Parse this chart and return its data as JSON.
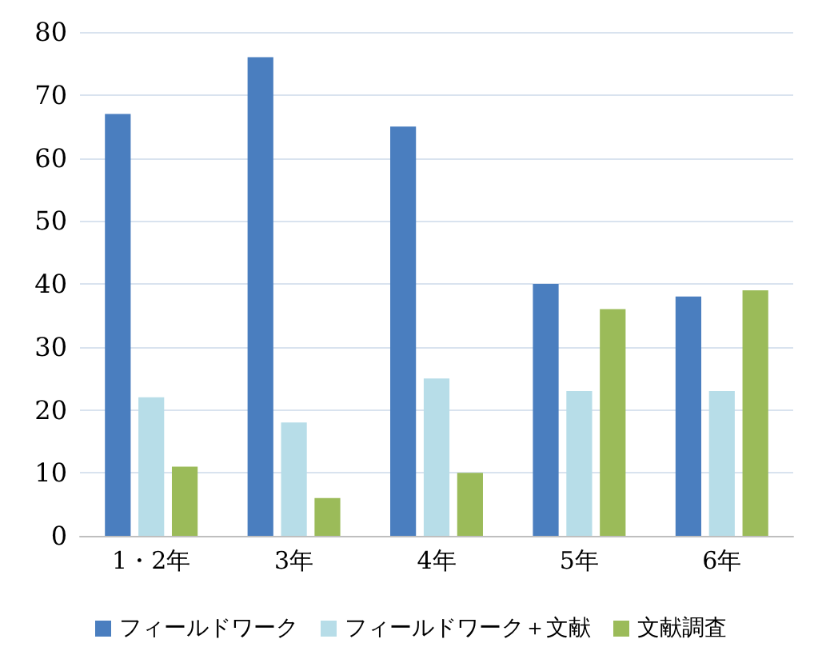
{
  "chart_data": {
    "type": "bar",
    "categories": [
      "1・2年",
      "3年",
      "4年",
      "5年",
      "6年"
    ],
    "series": [
      {
        "name": "フィールドワーク",
        "color": "#4a7ebf",
        "values": [
          67,
          76,
          65,
          40,
          38
        ]
      },
      {
        "name": "フィールドワーク＋文献",
        "color": "#b7dde8",
        "values": [
          22,
          18,
          25,
          23,
          23
        ]
      },
      {
        "name": "文献調査",
        "color": "#9bbb59",
        "values": [
          11,
          6,
          10,
          36,
          39
        ]
      }
    ],
    "ylim": [
      0,
      80
    ],
    "yticks": [
      0,
      10,
      20,
      30,
      40,
      50,
      60,
      70,
      80
    ],
    "grid": "y",
    "legend": "bottom"
  }
}
